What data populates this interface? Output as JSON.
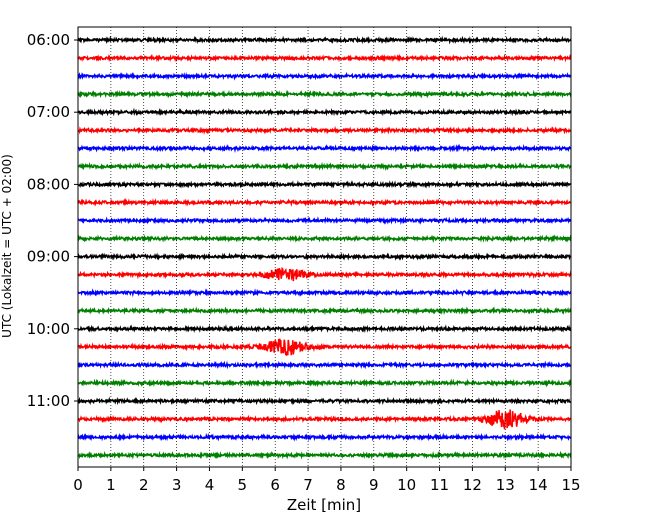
{
  "chart_data": {
    "type": "line",
    "title": "",
    "xlabel": "Zeit  [min]",
    "ylabel": "UTC (Lokalzeit = UTC + 02:00)",
    "xlim": [
      0,
      15
    ],
    "x_ticks": [
      "0",
      "1",
      "2",
      "3",
      "4",
      "5",
      "6",
      "7",
      "8",
      "9",
      "10",
      "11",
      "12",
      "13",
      "14",
      "15"
    ],
    "y_ticks": [
      "06:00",
      "07:00",
      "08:00",
      "09:00",
      "10:00",
      "11:00"
    ],
    "grid": "x-dotted",
    "trace_colors": [
      "#000000",
      "#ff0000",
      "#0000ff",
      "#008000"
    ],
    "trace_interval_minutes": 15,
    "trace_start": "06:00",
    "trace_count": 24,
    "events": [
      {
        "trace_start": "09:15",
        "time_min": 6.3,
        "amplitude": 6
      },
      {
        "trace_start": "10:15",
        "time_min": 6.3,
        "amplitude": 8
      },
      {
        "trace_start": "11:15",
        "time_min": 13.0,
        "amplitude": 9
      }
    ]
  }
}
